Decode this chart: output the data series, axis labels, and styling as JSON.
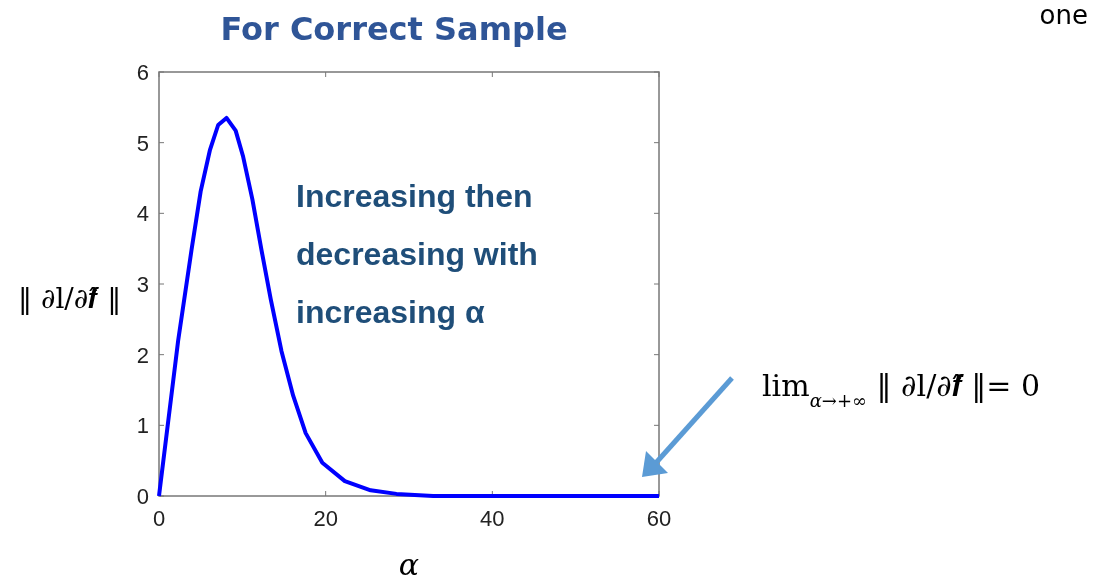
{
  "chart_data": {
    "type": "line",
    "title": "For Correct Sample",
    "xlabel": "α",
    "ylabel": "‖ ∂l/∂𝒇̂ ‖",
    "x": [
      0,
      2.3,
      3.9,
      5.0,
      6.1,
      7.1,
      8.1,
      9.2,
      10.1,
      11.2,
      12.3,
      13.4,
      14.7,
      16.1,
      17.6,
      19.6,
      22.3,
      25.4,
      28.5,
      32.9,
      40,
      50,
      60
    ],
    "series": [
      {
        "color": "#0000ff",
        "values": [
          0,
          2.2,
          3.48,
          4.31,
          4.89,
          5.25,
          5.35,
          5.17,
          4.8,
          4.2,
          3.48,
          2.79,
          2.05,
          1.42,
          0.89,
          0.47,
          0.21,
          0.08,
          0.03,
          0,
          0,
          0,
          0
        ]
      }
    ],
    "xlim": [
      0,
      60
    ],
    "ylim": [
      0,
      6
    ],
    "xticks": [
      0,
      20,
      40,
      60
    ],
    "yticks": [
      0,
      1,
      2,
      3,
      4,
      5,
      6
    ],
    "grid": false,
    "marker": "none",
    "line_style": "solid",
    "annotations": [
      "Increasing then decreasing with increasing α",
      "lim$_{α→+∞}$ ‖ ∂l/∂𝒇̂ ‖= 0",
      "one"
    ]
  }
}
